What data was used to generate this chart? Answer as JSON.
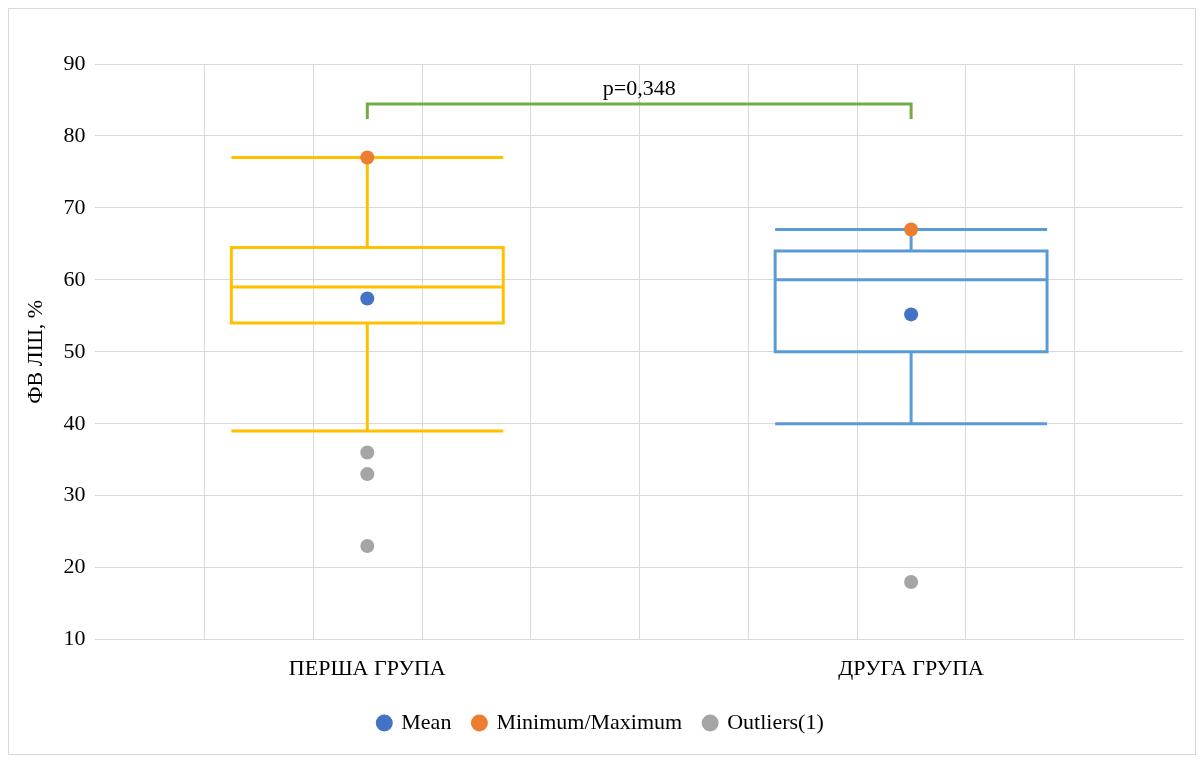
{
  "chart_data": {
    "type": "box",
    "ylabel": "ФВ ЛШ, %",
    "categories": [
      "ПЕРША ГРУПА",
      "ДРУГА ГРУПА"
    ],
    "ylim": [
      10,
      90
    ],
    "yticks": [
      10,
      20,
      30,
      40,
      50,
      60,
      70,
      80,
      90
    ],
    "grid": true,
    "legend": "bottom",
    "annotations": [
      "p=0,348"
    ],
    "boxes": [
      {
        "low": 39,
        "q1": 54,
        "median": 59,
        "q3": 64.5,
        "high": 77
      },
      {
        "low": 40,
        "q1": 50,
        "median": 60,
        "q3": 64,
        "high": 67
      }
    ],
    "colors": [
      "#ffc000",
      "#5b9bd5"
    ],
    "series": [
      {
        "type": "scatter",
        "name": "Mean",
        "color": "#4472c4",
        "x": [
          "ПЕРША ГРУПА",
          "ДРУГА ГРУПА"
        ],
        "values": [
          57.4,
          55.2
        ]
      },
      {
        "type": "scatter",
        "name": "Minimum/Maximum",
        "color": "#ed7d31",
        "x": [
          "ПЕРША ГРУПА",
          "ДРУГА ГРУПА"
        ],
        "values": [
          77,
          67
        ]
      },
      {
        "type": "scatter",
        "name": "Outliers(1)",
        "color": "#a5a5a5",
        "x": [
          "ПЕРША ГРУПА",
          "ПЕРША ГРУПА",
          "ПЕРША ГРУПА",
          "ДРУГА ГРУПА"
        ],
        "values": [
          36,
          33,
          23,
          18
        ]
      }
    ]
  }
}
